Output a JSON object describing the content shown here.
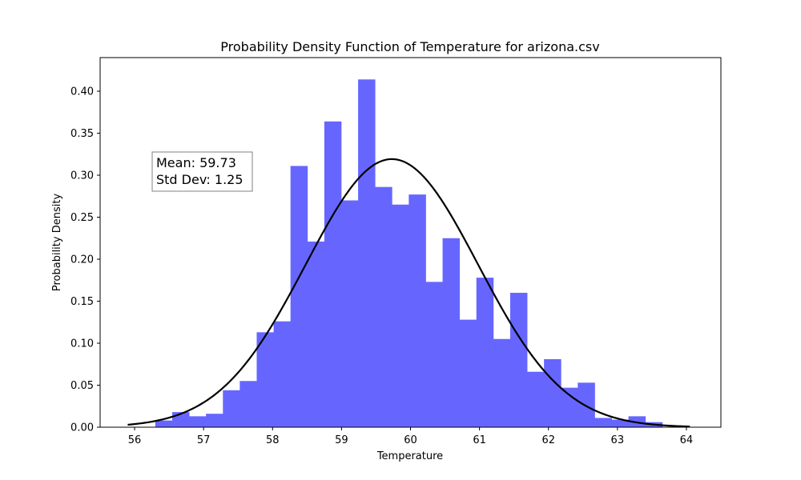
{
  "chart_data": {
    "type": "bar",
    "title": "Probability Density Function of Temperature for arizona.csv",
    "xlabel": "Temperature",
    "ylabel": "Probability Density",
    "xlim": [
      55.5,
      64.5
    ],
    "ylim": [
      0.0,
      0.44
    ],
    "x_ticks": [
      56,
      57,
      58,
      59,
      60,
      61,
      62,
      63,
      64
    ],
    "x_tick_labels": [
      "56",
      "57",
      "58",
      "59",
      "60",
      "61",
      "62",
      "63",
      "64"
    ],
    "y_ticks": [
      0.0,
      0.05,
      0.1,
      0.15,
      0.2,
      0.25,
      0.3,
      0.35,
      0.4
    ],
    "y_tick_labels": [
      "0.00",
      "0.05",
      "0.10",
      "0.15",
      "0.20",
      "0.25",
      "0.30",
      "0.35",
      "0.40"
    ],
    "grid": false,
    "histogram": {
      "color": "#6666ff",
      "bin_edges": [
        56.3,
        56.545,
        56.79,
        57.035,
        57.28,
        57.525,
        57.77,
        58.015,
        58.26,
        58.505,
        58.75,
        58.995,
        59.24,
        59.485,
        59.73,
        59.975,
        60.22,
        60.465,
        60.71,
        60.955,
        61.2,
        61.445,
        61.69,
        61.935,
        62.18,
        62.425,
        62.67,
        62.915,
        63.16,
        63.405,
        63.65
      ],
      "densities": [
        0.008,
        0.018,
        0.013,
        0.016,
        0.044,
        0.055,
        0.113,
        0.126,
        0.311,
        0.221,
        0.364,
        0.27,
        0.414,
        0.286,
        0.265,
        0.277,
        0.173,
        0.225,
        0.128,
        0.178,
        0.105,
        0.16,
        0.066,
        0.081,
        0.047,
        0.053,
        0.011,
        0.009,
        0.013,
        0.006
      ]
    },
    "normal_fit": {
      "mean": 59.73,
      "std": 1.25,
      "x_range": [
        55.9,
        64.05
      ],
      "color": "#000000"
    },
    "annotation": {
      "lines": [
        "Mean: 59.73",
        "Std Dev: 1.25"
      ]
    }
  }
}
